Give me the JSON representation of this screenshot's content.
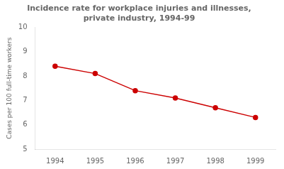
{
  "chart_data": {
    "type": "line",
    "title": "Incidence rate for workplace injuries and illnesses,\nprivate industry, 1994-99",
    "ylabel": "Cases per 100 full-time workers",
    "x": [
      1994,
      1995,
      1996,
      1997,
      1998,
      1999
    ],
    "values": [
      8.4,
      8.1,
      7.4,
      7.1,
      6.7,
      6.3
    ],
    "color": "#cc0000",
    "marker": "circle",
    "line_style": "solid",
    "xlim": [
      1993.5,
      1999.5
    ],
    "ylim": [
      5,
      10
    ],
    "xticks": [
      1994,
      1995,
      1996,
      1997,
      1998,
      1999
    ],
    "yticks": [
      5,
      6,
      7,
      8,
      9,
      10
    ],
    "grid": false
  }
}
